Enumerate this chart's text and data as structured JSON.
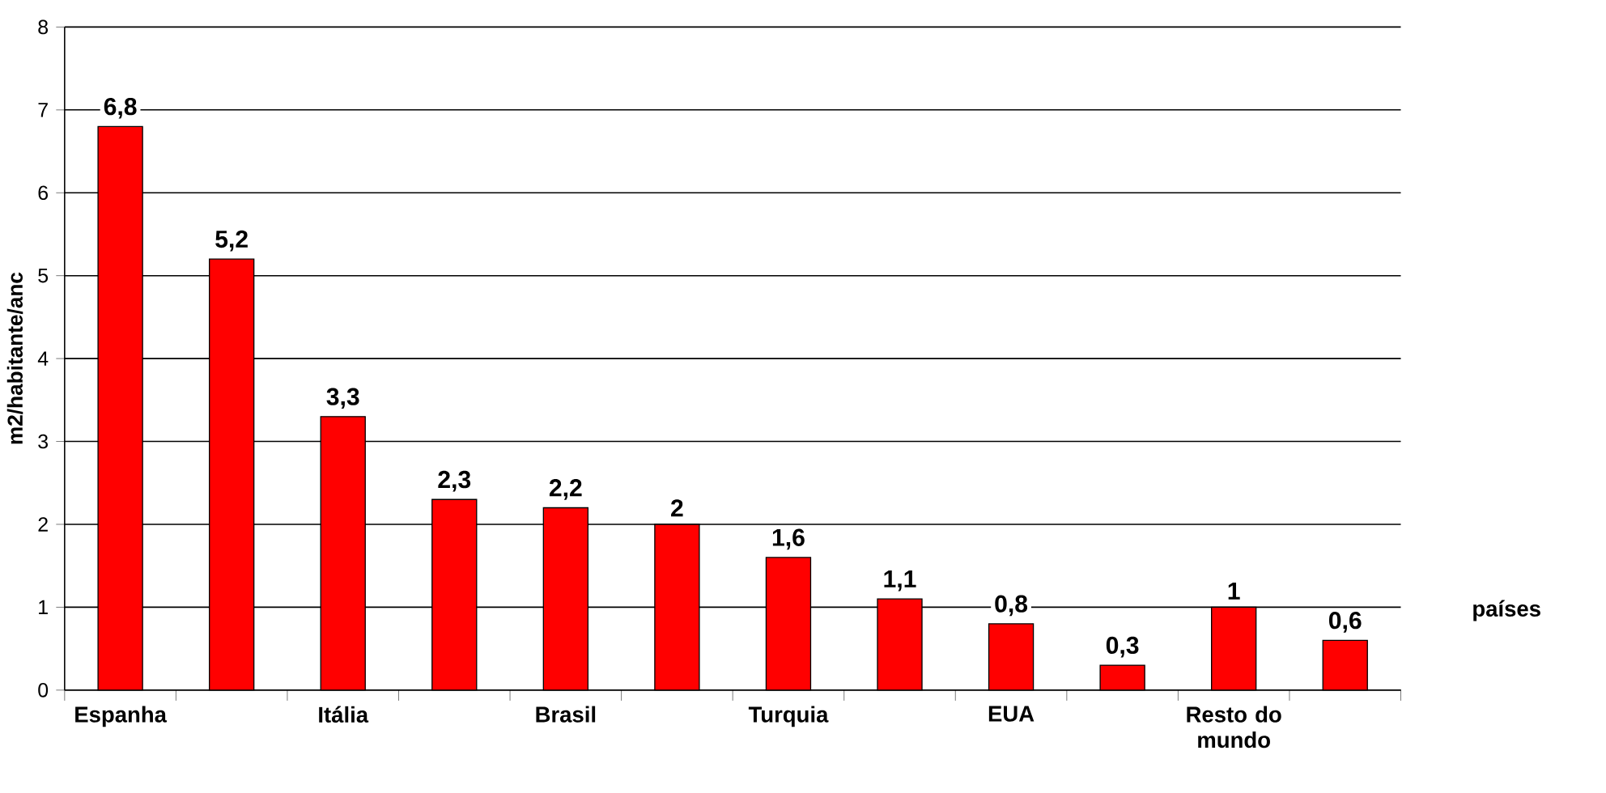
{
  "chart_data": {
    "type": "bar",
    "ylabel": "m2/habitante/anc",
    "xlabel": "países",
    "categories": [
      "Espanha",
      null,
      "Itália",
      null,
      "Brasil",
      null,
      "Turquia",
      null,
      "EUA",
      null,
      "Resto do mundo",
      null
    ],
    "values": [
      6.8,
      5.2,
      3.3,
      2.3,
      2.2,
      2,
      1.6,
      1.1,
      0.8,
      0.3,
      1,
      0.6
    ],
    "value_labels": [
      "6,8",
      "5,2",
      "3,3",
      "2,3",
      "2,2",
      "2",
      "1,6",
      "1,1",
      "0,8",
      "0,3",
      "1",
      "0,6"
    ],
    "color": "#ff0000",
    "ylim": [
      0,
      8
    ],
    "yticks": [
      0,
      1,
      2,
      3,
      4,
      5,
      6,
      7,
      8
    ],
    "grid": "y"
  }
}
